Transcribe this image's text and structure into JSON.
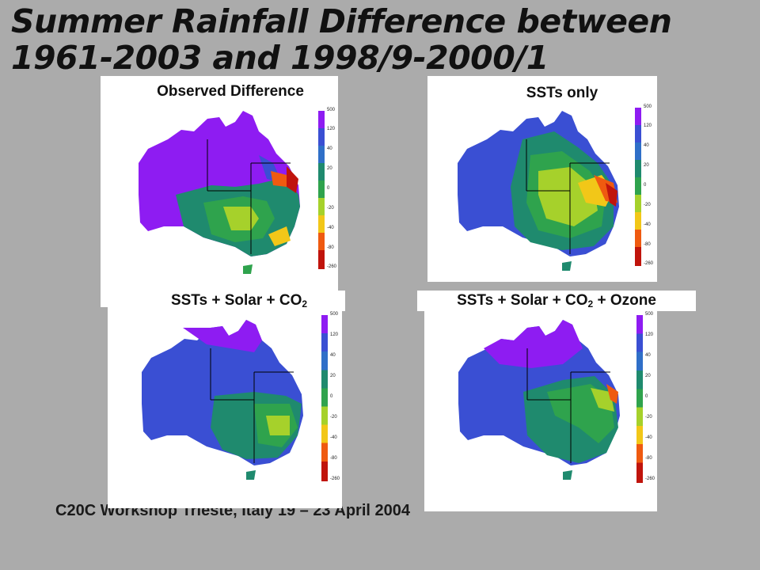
{
  "title": "Summer Rainfall Difference between 1961-2003 and 1998/9-2000/1",
  "footer": "C20C Workshop Trieste, Italy 19 – 23 April 2004",
  "panels": [
    {
      "label": "Observed Difference",
      "label_sub": "",
      "label_tail": ""
    },
    {
      "label": "SSTs only",
      "label_sub": "",
      "label_tail": ""
    },
    {
      "label": "SSTs + Solar + CO",
      "label_sub": "2",
      "label_tail": ""
    },
    {
      "label": "SSTs + Solar + CO",
      "label_sub": "2",
      "label_tail": " + Ozone"
    }
  ],
  "colorbar": {
    "ticks": [
      "500",
      "120",
      "40",
      "20",
      "0",
      "-20",
      "-40",
      "-80",
      "-260"
    ],
    "colors": [
      "#8e1cf2",
      "#3a4fd3",
      "#2f6fc8",
      "#1f8a6e",
      "#2fa34d",
      "#a6d12b",
      "#f2c718",
      "#ef5a10",
      "#c0140c"
    ]
  }
}
